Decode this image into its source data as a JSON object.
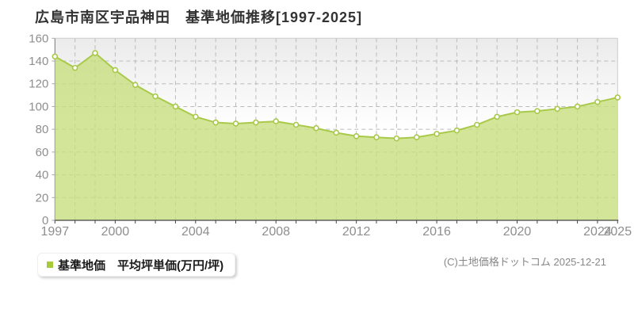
{
  "title": "広島市南区宇品神田　基準地価推移[1997-2025]",
  "legend": {
    "label": "基準地価　平均坪単価(万円/坪)",
    "marker_color": "#a8ca38"
  },
  "copyright": "(C)土地価格ドットコム 2025-12-21",
  "chart_data": {
    "type": "area",
    "title": "広島市南区宇品神田 基準地価推移[1997-2025]",
    "series_name": "基準地価 平均坪単価(万円/坪)",
    "unit": "万円/坪",
    "x": [
      1997,
      1998,
      1999,
      2000,
      2001,
      2002,
      2003,
      2004,
      2005,
      2006,
      2007,
      2008,
      2009,
      2010,
      2011,
      2012,
      2013,
      2014,
      2015,
      2016,
      2017,
      2018,
      2019,
      2020,
      2021,
      2022,
      2023,
      2024,
      2025
    ],
    "values": [
      144,
      134,
      147,
      132,
      119,
      109,
      100,
      91,
      86,
      85,
      86,
      87,
      84,
      81,
      77,
      74,
      73,
      72,
      73,
      76,
      79,
      84,
      91,
      95,
      96,
      98,
      100,
      104,
      108
    ],
    "ylim": [
      0,
      160
    ],
    "y_ticks": [
      0,
      20,
      40,
      60,
      80,
      100,
      120,
      140,
      160
    ],
    "x_tick_labels": [
      "1997",
      "2000",
      "2004",
      "2008",
      "2012",
      "2016",
      "2020",
      "2024",
      "2025"
    ],
    "grid": true,
    "legend_position": "bottom-left",
    "colors": {
      "area_fill": "#c6de7c",
      "line": "#a9c94b",
      "marker_fill": "#ffffff",
      "grid": "#bbbbbb",
      "axis": "#444444",
      "left_axis": "#777777",
      "border": "#cccccc",
      "label": "#8e8e8e",
      "plot_bg_top": "#ebebeb"
    }
  }
}
